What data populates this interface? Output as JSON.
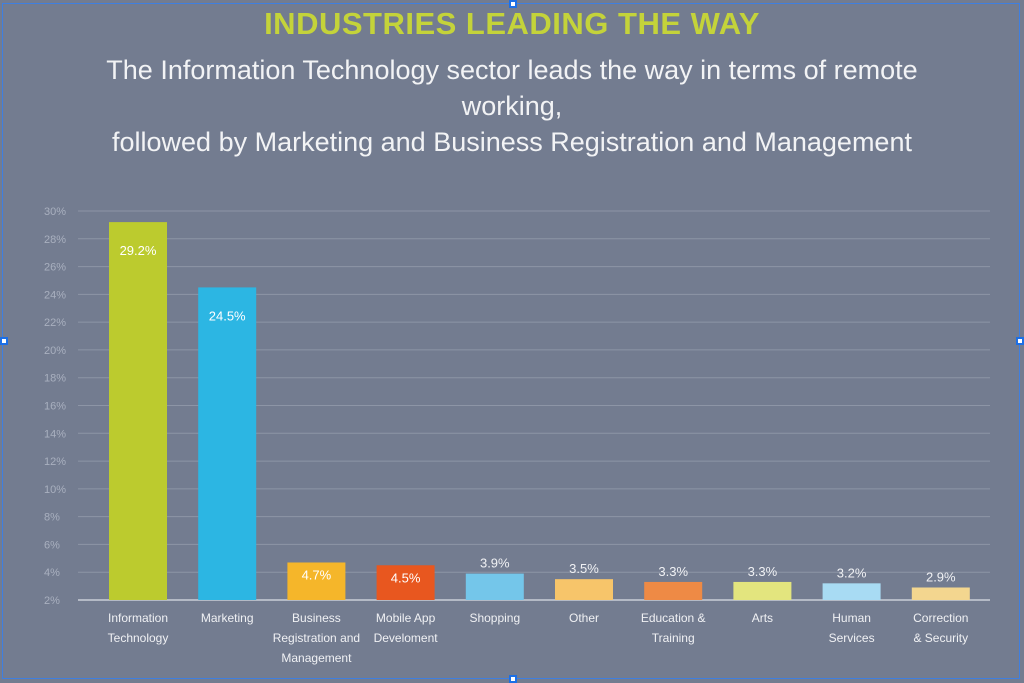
{
  "chart_data": {
    "type": "bar",
    "title": "INDUSTRIES LEADING THE WAY",
    "subtitle_lines": [
      "The Information Technology sector leads the way in terms of remote working,",
      "followed by Marketing and Business Registration and Management"
    ],
    "categories": [
      [
        "Information",
        "Technology"
      ],
      [
        "Marketing"
      ],
      [
        "Business",
        "Registration and",
        "Management"
      ],
      [
        "Mobile App",
        "Develoment"
      ],
      [
        "Shopping"
      ],
      [
        "Other"
      ],
      [
        "Education &",
        "Training"
      ],
      [
        "Arts"
      ],
      [
        "Human",
        "Services"
      ],
      [
        "Correction",
        "& Security"
      ]
    ],
    "values": [
      29.2,
      24.5,
      4.7,
      4.5,
      3.9,
      3.5,
      3.3,
      3.3,
      3.2,
      2.9
    ],
    "value_labels": [
      "29.2%",
      "24.5%",
      "4.7%",
      "4.5%",
      "3.9%",
      "3.5%",
      "3.3%",
      "3.3%",
      "3.2%",
      "2.9%"
    ],
    "label_inside": [
      true,
      true,
      true,
      true,
      false,
      false,
      false,
      false,
      false,
      false
    ],
    "colors": [
      "#bccb2e",
      "#2cb6e3",
      "#f5b62a",
      "#e8571f",
      "#74c6ea",
      "#f7c56a",
      "#ee8a45",
      "#e3e57e",
      "#a8dbf3",
      "#f3d68f"
    ],
    "ylim": [
      2,
      30
    ],
    "y_ticks": [
      2,
      4,
      6,
      8,
      10,
      12,
      14,
      16,
      18,
      20,
      22,
      24,
      26,
      28,
      30
    ],
    "y_tick_labels": [
      "2%",
      "4%",
      "6%",
      "8%",
      "10%",
      "12%",
      "14%",
      "16%",
      "18%",
      "20%",
      "22%",
      "24%",
      "26%",
      "28%",
      "30%"
    ],
    "grid": true,
    "xlabel": "",
    "ylabel": ""
  }
}
